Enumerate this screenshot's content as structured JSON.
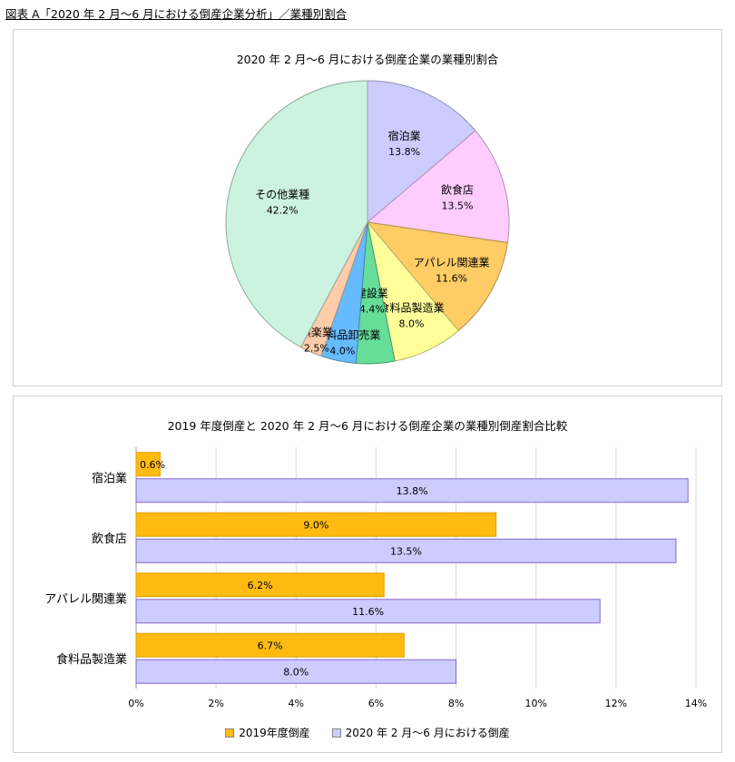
{
  "figure": {
    "title": "図表 A「2020 年 2 月〜6 月における倒産企業分析」／業種別割合"
  },
  "chart_data": [
    {
      "type": "pie",
      "title": "2020 年 2 月〜6 月における倒産企業の業種別割合",
      "slices": [
        {
          "label": "宿泊業",
          "value": 13.8,
          "value_label": "13.8%",
          "color": "#ccccff"
        },
        {
          "label": "飲食店",
          "value": 13.5,
          "value_label": "13.5%",
          "color": "#ffccff"
        },
        {
          "label": "アパレル関連業",
          "value": 11.6,
          "value_label": "11.6%",
          "color": "#ffcc66"
        },
        {
          "label": "食料品製造業",
          "value": 8.0,
          "value_label": "8.0%",
          "color": "#ffff99"
        },
        {
          "label": "建設業",
          "value": 4.4,
          "value_label": "4.4%",
          "color": "#66dd99"
        },
        {
          "label": "飲食料品卸売業",
          "value": 4.0,
          "value_label": "4.0%",
          "color": "#66bbff"
        },
        {
          "label": "娯楽業",
          "value": 2.5,
          "value_label": "2.5%",
          "color": "#ffccaa"
        },
        {
          "label": "その他業種",
          "value": 42.2,
          "value_label": "42.2%",
          "color": "#ccf2e0"
        }
      ]
    },
    {
      "type": "bar",
      "orientation": "horizontal",
      "title": "2019 年度倒産と 2020 年 2 月〜6 月における倒産企業の業種別倒産割合比較",
      "categories": [
        "宿泊業",
        "飲食店",
        "アパレル関連業",
        "食料品製造業"
      ],
      "series": [
        {
          "name": "2019年度倒産",
          "values": [
            0.6,
            9.0,
            6.2,
            6.7
          ],
          "value_labels": [
            "0.6%",
            "9.0%",
            "6.2%",
            "6.7%"
          ],
          "color": "#ffbb11"
        },
        {
          "name": "2020 年 2 月〜6 月における倒産",
          "values": [
            13.8,
            13.5,
            11.6,
            8.0
          ],
          "value_labels": [
            "13.8%",
            "13.5%",
            "11.6%",
            "8.0%"
          ],
          "color": "#ccccff"
        }
      ],
      "xlim": [
        0,
        14
      ],
      "xticks": [
        "0%",
        "2%",
        "4%",
        "6%",
        "8%",
        "10%",
        "12%",
        "14%"
      ],
      "grid": true,
      "legend": "bottom"
    }
  ]
}
